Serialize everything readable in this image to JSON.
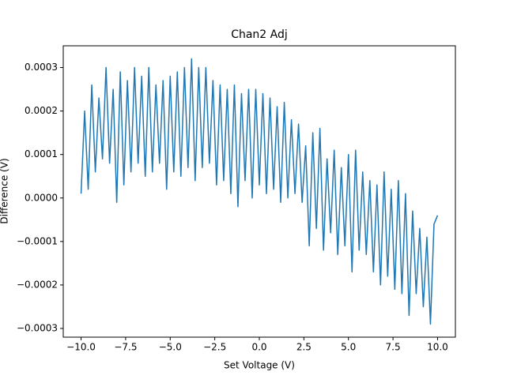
{
  "chart_data": {
    "type": "line",
    "title": "Chan2 Adj",
    "xlabel": "Set Voltage (V)",
    "ylabel": "Difference (V)",
    "x": [
      -10,
      -9.8,
      -9.6,
      -9.4,
      -9.2,
      -9,
      -8.8,
      -8.6,
      -8.4,
      -8.2,
      -8,
      -7.8,
      -7.6,
      -7.4,
      -7.2,
      -7,
      -6.8,
      -6.6,
      -6.4,
      -6.2,
      -6,
      -5.8,
      -5.6,
      -5.4,
      -5.2,
      -5,
      -4.8,
      -4.6,
      -4.4,
      -4.2,
      -4,
      -3.8,
      -3.6,
      -3.4,
      -3.2,
      -3,
      -2.8,
      -2.6,
      -2.4,
      -2.2,
      -2,
      -1.8,
      -1.6,
      -1.4,
      -1.2,
      -1,
      -0.8,
      -0.6,
      -0.4,
      -0.2,
      0,
      0.2,
      0.4,
      0.6,
      0.8,
      1,
      1.2,
      1.4,
      1.6,
      1.8,
      2,
      2.2,
      2.4,
      2.6,
      2.8,
      3,
      3.2,
      3.4,
      3.6,
      3.8,
      4,
      4.2,
      4.4,
      4.6,
      4.8,
      5,
      5.2,
      5.4,
      5.6,
      5.8,
      6,
      6.2,
      6.4,
      6.6,
      6.8,
      7,
      7.2,
      7.4,
      7.6,
      7.8,
      8,
      8.2,
      8.4,
      8.6,
      8.8,
      9,
      9.2,
      9.4,
      9.6,
      9.8,
      10
    ],
    "series": [
      {
        "color": "#1f77b4",
        "values": [
          1e-05,
          0.0002,
          2e-05,
          0.00026,
          6e-05,
          0.00023,
          9e-05,
          0.0003,
          8e-05,
          0.00025,
          -1e-05,
          0.00029,
          3e-05,
          0.00027,
          6e-05,
          0.0003,
          8e-05,
          0.00028,
          5e-05,
          0.0003,
          6e-05,
          0.00026,
          8e-05,
          0.00027,
          2e-05,
          0.00028,
          6e-05,
          0.00029,
          5e-05,
          0.0003,
          7e-05,
          0.00032,
          4e-05,
          0.0003,
          7e-05,
          0.0003,
          8e-05,
          0.00027,
          3e-05,
          0.00026,
          4e-05,
          0.00025,
          1e-05,
          0.00026,
          -2e-05,
          0.00024,
          4e-05,
          0.00025,
          0.0,
          0.00025,
          3e-05,
          0.00024,
          1e-05,
          0.00023,
          2e-05,
          0.00021,
          -1e-05,
          0.00022,
          0.0,
          0.00018,
          1e-05,
          0.00017,
          -1e-05,
          0.00012,
          -0.00011,
          0.00015,
          -7e-05,
          0.00016,
          -0.00012,
          9e-05,
          -8e-05,
          0.00011,
          -0.00013,
          7e-05,
          -0.00011,
          0.0001,
          -0.00017,
          0.00011,
          -0.00012,
          6e-05,
          -0.00013,
          4e-05,
          -0.00017,
          3e-05,
          -0.0002,
          6e-05,
          -0.00018,
          2e-05,
          -0.00021,
          4e-05,
          -0.00022,
          1e-05,
          -0.00027,
          -3e-05,
          -0.00022,
          -7e-05,
          -0.00025,
          -9e-05,
          -0.00029,
          -6e-05,
          -4e-05
        ]
      }
    ],
    "xlim": [
      -11,
      11
    ],
    "ylim": [
      -0.00032,
      0.00035
    ],
    "xticks": [
      {
        "value": -10,
        "label": "−10.0"
      },
      {
        "value": -7.5,
        "label": "−7.5"
      },
      {
        "value": -5,
        "label": "−5.0"
      },
      {
        "value": -2.5,
        "label": "−2.5"
      },
      {
        "value": 0,
        "label": "0.0"
      },
      {
        "value": 2.5,
        "label": "2.5"
      },
      {
        "value": 5,
        "label": "5.0"
      },
      {
        "value": 7.5,
        "label": "7.5"
      },
      {
        "value": 10,
        "label": "10.0"
      }
    ],
    "yticks": [
      {
        "value": -0.0003,
        "label": "−0.0003"
      },
      {
        "value": -0.0002,
        "label": "−0.0002"
      },
      {
        "value": -0.0001,
        "label": "−0.0001"
      },
      {
        "value": 0,
        "label": "0.0000"
      },
      {
        "value": 0.0001,
        "label": "0.0001"
      },
      {
        "value": 0.0002,
        "label": "0.0002"
      },
      {
        "value": 0.0003,
        "label": "0.0003"
      }
    ]
  }
}
